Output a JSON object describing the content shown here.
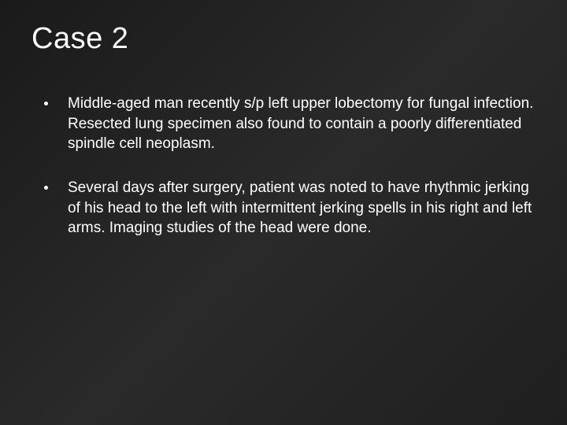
{
  "slide": {
    "title": "Case 2",
    "bullets": [
      "Middle-aged man recently s/p left upper lobectomy for fungal infection. Resected lung specimen also found to contain a poorly differentiated spindle cell neoplasm.",
      "Several days after surgery, patient was noted to have rhythmic jerking of his head to the left with intermittent jerking spells in his right and left arms. Imaging studies of the head were done."
    ],
    "background_gradient": [
      "#1a1a1a",
      "#2a2a2a",
      "#1f1f1f"
    ],
    "text_color": "#ffffff",
    "title_fontsize": 38,
    "body_fontsize": 19,
    "bullet_marker_color": "#ffffff",
    "line_height": 1.35,
    "bullet_spacing": 30
  }
}
